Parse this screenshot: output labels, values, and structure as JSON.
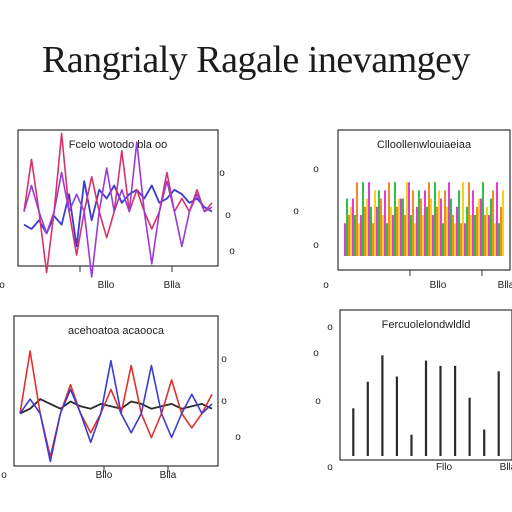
{
  "title": "Rangrialy Ragale inevamgey",
  "colors": {
    "frame": "#333333",
    "text": "#222222"
  },
  "chart_data": [
    {
      "type": "line",
      "title": "Fcelo wotodo bla oo",
      "x_tick_labels": [
        "o",
        "Bllo",
        "Blla"
      ],
      "y_tick_labels": [
        "o",
        "o",
        "o"
      ],
      "series": [
        {
          "color": "#3b3bd6",
          "values": [
            -0.3,
            -0.4,
            -0.2,
            -0.5,
            -0.1,
            -0.3,
            0.4,
            -0.8,
            0.7,
            -0.2,
            0.5,
            0.3,
            0.6,
            0.2,
            0.4,
            0.5,
            0.3,
            0.6,
            0.2,
            0.3,
            0.5,
            0.4,
            0.2,
            0.3,
            0.1,
            0.0
          ]
        },
        {
          "color": "#d6336c",
          "values": [
            0,
            1.2,
            0,
            -1.4,
            0,
            1.8,
            0,
            -1.0,
            0,
            0.8,
            0,
            -0.6,
            0,
            1.4,
            0,
            0.5,
            0,
            -0.4,
            0,
            0.9,
            0,
            0.3,
            0,
            0.5,
            0,
            0.2
          ]
        },
        {
          "color": "#9b3bd6",
          "values": [
            0,
            0.6,
            0,
            -0.5,
            0,
            0.9,
            0,
            0.4,
            0,
            -1.5,
            0,
            1.0,
            0,
            0.5,
            0,
            1.6,
            0,
            -1.2,
            0,
            0.7,
            0,
            -0.8,
            0,
            0.4,
            0,
            0.1
          ]
        }
      ]
    },
    {
      "type": "bar",
      "title": "Clloollenwlouiaeiaa",
      "x_tick_labels": [
        "o",
        "Bllo",
        "Blla"
      ],
      "y_tick_labels": [
        "o",
        "o",
        "o"
      ],
      "series": [
        {
          "color": "#e53bd6",
          "values": [
            0.4,
            0.7,
            0.5,
            0.9,
            0.6,
            0.8,
            0.5,
            0.7,
            0.9,
            0.6,
            0.8,
            0.5,
            0.7,
            0.9,
            0.6,
            0.4,
            0.8,
            0.7,
            0.5,
            0.9
          ]
        },
        {
          "color": "#2ec04a",
          "values": [
            0.7,
            0.5,
            0.9,
            0.6,
            0.8,
            0.4,
            0.9,
            0.7,
            0.5,
            0.8,
            0.6,
            0.9,
            0.4,
            0.7,
            0.8,
            0.6,
            0.5,
            0.9,
            0.7,
            0.4
          ]
        },
        {
          "color": "#f08a24",
          "values": [
            0.5,
            0.9,
            0.6,
            0.4,
            0.7,
            0.9,
            0.6,
            0.5,
            0.8,
            0.7,
            0.9,
            0.6,
            0.8,
            0.5,
            0.4,
            0.9,
            0.6,
            0.5,
            0.8,
            0.6
          ]
        },
        {
          "color": "#f2d21e",
          "values": [
            0.6,
            0.4,
            0.7,
            0.8,
            0.5,
            0.6,
            0.7,
            0.9,
            0.4,
            0.5,
            0.7,
            0.8,
            0.6,
            0.4,
            0.9,
            0.5,
            0.7,
            0.6,
            0.4,
            0.8
          ]
        }
      ]
    },
    {
      "type": "line",
      "title": "acehoatoa acaooca",
      "x_tick_labels": [
        "o",
        "Bllo",
        "Blla"
      ],
      "y_tick_labels": [
        "o",
        "o",
        "o"
      ],
      "series": [
        {
          "color": "#2b2b2b",
          "values": [
            0,
            0.1,
            0.3,
            0.2,
            0.1,
            0.25,
            0.15,
            0.1,
            0.2,
            0.15,
            0.1,
            0.25,
            0.2,
            0.1,
            0.15,
            0.2,
            0.1,
            0.15,
            0.2,
            0.1
          ]
        },
        {
          "color": "#e0302c",
          "values": [
            0,
            1.3,
            0,
            -0.9,
            0,
            0.6,
            0,
            -0.4,
            0,
            0.5,
            0,
            1.0,
            0,
            -0.5,
            0,
            0.7,
            0,
            -0.3,
            0,
            0.4
          ]
        },
        {
          "color": "#3b3bd6",
          "values": [
            0,
            0.3,
            0,
            -1.0,
            0,
            0.5,
            0,
            -0.6,
            0,
            1.1,
            0,
            -0.4,
            0,
            1.0,
            0,
            -0.5,
            0,
            0.4,
            0,
            0.2
          ]
        }
      ]
    },
    {
      "type": "bar",
      "title": "Fercuolelondwldld",
      "x_tick_labels": [
        "o",
        "Fllo",
        "Blla"
      ],
      "y_tick_labels": [
        "o",
        "o",
        "o"
      ],
      "values": [
        0.45,
        0.7,
        0.95,
        0.75,
        0.2,
        0.9,
        0.85,
        0.85,
        0.55,
        0.25,
        0.8
      ]
    }
  ]
}
